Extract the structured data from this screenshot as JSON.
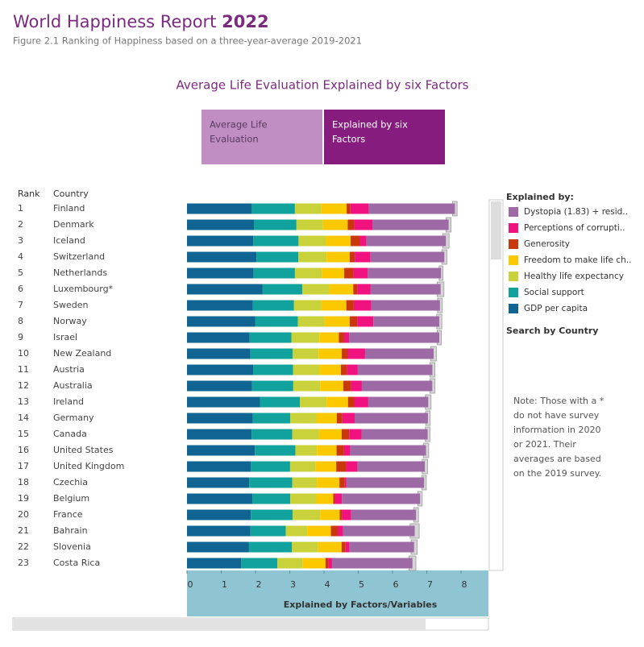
{
  "header": {
    "title_main": "World Happiness Report",
    "title_year": "2022",
    "subtitle": "Figure 2.1 Ranking of Happiness based on a three-year-average 2019-2021"
  },
  "toggle": {
    "heading": "Average Life Evaluation Explained by six Factors",
    "option_1": [
      "Average Life",
      "Evaluation"
    ],
    "option_2": [
      "Explained by six",
      "Factors"
    ]
  },
  "legend_title": "Explained by:",
  "search_label": "Search by Country",
  "note": [
    "Note: Those with a *",
    "do not have survey",
    "information in 2020",
    "or 2021. Their",
    "averages are based",
    "on the 2019 survey."
  ],
  "chart_data": {
    "type": "stacked_bar_horizontal",
    "rank_header": "Rank",
    "country_header": "Country",
    "ranks": [
      1,
      2,
      3,
      4,
      5,
      6,
      7,
      8,
      9,
      10,
      11,
      12,
      13,
      14,
      15,
      16,
      17,
      18,
      19,
      20,
      21,
      22,
      23
    ],
    "categories": [
      "Finland",
      "Denmark",
      "Iceland",
      "Switzerland",
      "Netherlands",
      "Luxembourg*",
      "Sweden",
      "Norway",
      "Israel",
      "New Zealand",
      "Austria",
      "Australia",
      "Ireland",
      "Germany",
      "Canada",
      "United States",
      "United Kingdom",
      "Czechia",
      "Belgium",
      "France",
      "Bahrain",
      "Slovenia",
      "Costa Rica"
    ],
    "series": [
      {
        "name": "GDP per capita",
        "color": "#0f6491",
        "values": [
          1.892,
          1.953,
          1.936,
          2.026,
          1.945,
          2.209,
          1.92,
          1.997,
          1.826,
          1.852,
          1.931,
          1.9,
          2.129,
          1.924,
          1.886,
          1.982,
          1.867,
          1.815,
          1.907,
          1.863,
          1.854,
          1.81,
          1.584
        ]
      },
      {
        "name": "Social support",
        "color": "#11a29e",
        "values": [
          1.258,
          1.243,
          1.32,
          1.226,
          1.206,
          1.155,
          1.204,
          1.239,
          1.221,
          1.235,
          1.165,
          1.203,
          1.166,
          1.088,
          1.188,
          1.182,
          1.143,
          1.26,
          1.106,
          1.219,
          1.029,
          1.249,
          1.054
        ]
      },
      {
        "name": "Healthy life expectancy",
        "color": "#c9d23b",
        "values": [
          0.775,
          0.777,
          0.803,
          0.822,
          0.787,
          0.79,
          0.803,
          0.786,
          0.818,
          0.752,
          0.774,
          0.786,
          0.779,
          0.776,
          0.783,
          0.628,
          0.75,
          0.715,
          0.764,
          0.808,
          0.625,
          0.769,
          0.744
        ]
      },
      {
        "name": "Freedom to make life ch..",
        "color": "#fcc900",
        "values": [
          0.736,
          0.719,
          0.718,
          0.677,
          0.651,
          0.7,
          0.724,
          0.728,
          0.568,
          0.68,
          0.623,
          0.676,
          0.627,
          0.585,
          0.659,
          0.574,
          0.597,
          0.66,
          0.492,
          0.567,
          0.693,
          0.685,
          0.661
        ]
      },
      {
        "name": "Generosity",
        "color": "#c9380c",
        "values": [
          0.109,
          0.188,
          0.27,
          0.147,
          0.271,
          0.12,
          0.218,
          0.217,
          0.155,
          0.175,
          0.18,
          0.221,
          0.181,
          0.163,
          0.217,
          0.22,
          0.289,
          0.158,
          0.049,
          0.07,
          0.199,
          0.118,
          0.089
        ]
      },
      {
        "name": "Perceptions of corrupti..",
        "color": "#f0127e",
        "values": [
          0.534,
          0.532,
          0.191,
          0.461,
          0.419,
          0.388,
          0.512,
          0.474,
          0.143,
          0.505,
          0.313,
          0.318,
          0.41,
          0.358,
          0.368,
          0.177,
          0.329,
          0.048,
          0.204,
          0.266,
          0.155,
          0.115,
          0.102
        ]
      },
      {
        "name": "Dystopia (1.83) + resid..",
        "color": "#9e6aa6",
        "values": [
          2.518,
          2.226,
          2.32,
          2.153,
          2.137,
          2.042,
          2.003,
          1.925,
          2.634,
          2.0,
          2.177,
          2.057,
          1.75,
          2.14,
          1.925,
          2.214,
          1.967,
          2.265,
          2.283,
          1.894,
          2.093,
          1.883,
          2.348
        ]
      }
    ],
    "whisker_low": [
      7.756,
      7.562,
      7.464,
      7.437,
      7.359,
      7.307,
      7.315,
      7.29,
      7.301,
      7.12,
      7.089,
      7.087,
      6.958,
      6.967,
      6.958,
      6.898,
      6.864,
      6.853,
      6.743,
      6.616,
      6.514,
      6.542,
      6.481
    ],
    "whisker_high": [
      7.886,
      7.71,
      7.651,
      7.586,
      7.471,
      7.501,
      7.454,
      7.44,
      7.426,
      7.279,
      7.237,
      7.236,
      7.124,
      7.1,
      7.092,
      7.056,
      7.021,
      6.986,
      6.867,
      6.758,
      6.779,
      6.718,
      6.683
    ],
    "xlim": [
      0,
      8.8
    ],
    "xticks": [
      0,
      1,
      2,
      3,
      4,
      5,
      6,
      7,
      8
    ],
    "xlabel": "Explained by Factors/Variables"
  }
}
